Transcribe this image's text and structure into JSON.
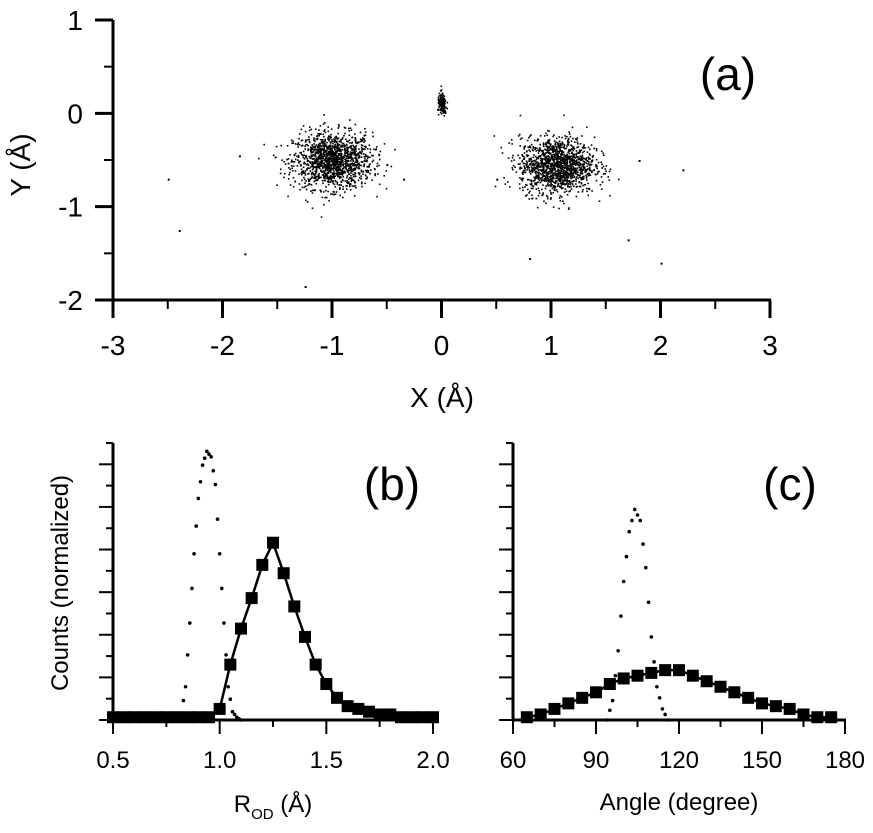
{
  "chart_data": [
    {
      "panel": "a",
      "type": "scatter",
      "panel_label": "(a)",
      "xlabel": "X (Å)",
      "ylabel": "Y (Å)",
      "xlim": [
        -3,
        3
      ],
      "ylim": [
        -2,
        1
      ],
      "xticks": [
        "-3",
        "-2",
        "-1",
        "0",
        "1",
        "2",
        "3"
      ],
      "yticks": [
        "1",
        "0",
        "-1",
        "-2"
      ],
      "clusters": [
        {
          "center": [
            -1.0,
            -0.5
          ],
          "spread": [
            0.18,
            0.15
          ],
          "points": 1400
        },
        {
          "center": [
            1.05,
            -0.55
          ],
          "spread": [
            0.17,
            0.15
          ],
          "points": 1400
        },
        {
          "center": [
            0.0,
            0.1
          ],
          "spread": [
            0.02,
            0.06
          ],
          "points": 140
        }
      ],
      "outliers": [
        [
          -2.5,
          -0.7
        ],
        [
          -2.4,
          -1.25
        ],
        [
          -1.8,
          -1.5
        ],
        [
          -1.85,
          -0.45
        ],
        [
          -0.35,
          -0.7
        ],
        [
          0.5,
          -0.7
        ],
        [
          2.2,
          -0.6
        ],
        [
          2.0,
          -1.6
        ],
        [
          1.8,
          -0.5
        ],
        [
          1.7,
          -1.35
        ],
        [
          0.8,
          -1.55
        ],
        [
          -1.25,
          -1.85
        ]
      ]
    },
    {
      "panel": "b",
      "type": "line",
      "panel_label": "(b)",
      "xlabel_main": "R",
      "xlabel_sub": "OD",
      "xlabel_unit": " (Å)",
      "ylabel": "Counts (normalized)",
      "xlim": [
        0.5,
        2.0
      ],
      "ylim": [
        0,
        1.0
      ],
      "xticks": [
        "0.5",
        "1.0",
        "1.5",
        "2.0"
      ],
      "series": [
        {
          "style": "squares-line",
          "x": [
            0.5,
            0.55,
            0.6,
            0.65,
            0.7,
            0.75,
            0.8,
            0.85,
            0.9,
            0.95,
            1.0,
            1.05,
            1.1,
            1.15,
            1.2,
            1.25,
            1.3,
            1.35,
            1.4,
            1.45,
            1.5,
            1.55,
            1.6,
            1.65,
            1.7,
            1.75,
            1.8,
            1.85,
            1.9,
            1.95,
            2.0
          ],
          "y": [
            0.01,
            0.01,
            0.01,
            0.01,
            0.01,
            0.01,
            0.01,
            0.01,
            0.01,
            0.01,
            0.04,
            0.2,
            0.33,
            0.44,
            0.56,
            0.64,
            0.53,
            0.41,
            0.3,
            0.2,
            0.13,
            0.08,
            0.05,
            0.04,
            0.03,
            0.02,
            0.02,
            0.01,
            0.01,
            0.01,
            0.01
          ]
        },
        {
          "style": "dotted",
          "x": [
            0.8,
            0.82,
            0.84,
            0.86,
            0.88,
            0.9,
            0.92,
            0.94,
            0.96,
            0.98,
            1.0,
            1.02,
            1.04,
            1.06,
            1.08,
            1.1
          ],
          "y": [
            0.0,
            0.02,
            0.12,
            0.35,
            0.6,
            0.8,
            0.92,
            0.97,
            0.95,
            0.85,
            0.6,
            0.35,
            0.12,
            0.03,
            0.01,
            0.0
          ]
        }
      ]
    },
    {
      "panel": "c",
      "type": "line",
      "panel_label": "(c)",
      "xlabel": "Angle (degree)",
      "xlim": [
        60,
        180
      ],
      "ylim": [
        0,
        1.0
      ],
      "xticks": [
        "60",
        "90",
        "120",
        "150",
        "180"
      ],
      "series": [
        {
          "style": "squares-line",
          "x": [
            65,
            70,
            75,
            80,
            85,
            90,
            95,
            100,
            105,
            110,
            115,
            120,
            125,
            130,
            135,
            140,
            145,
            150,
            155,
            160,
            165,
            170,
            175
          ],
          "y": [
            0.01,
            0.02,
            0.04,
            0.06,
            0.08,
            0.1,
            0.13,
            0.15,
            0.16,
            0.17,
            0.18,
            0.18,
            0.16,
            0.14,
            0.12,
            0.1,
            0.08,
            0.06,
            0.05,
            0.04,
            0.02,
            0.01,
            0.01
          ]
        },
        {
          "style": "dotted",
          "x": [
            94,
            96,
            98,
            100,
            102,
            104,
            106,
            108,
            110,
            112,
            114,
            116
          ],
          "y": [
            0.0,
            0.07,
            0.25,
            0.5,
            0.68,
            0.76,
            0.72,
            0.55,
            0.3,
            0.12,
            0.04,
            0.0
          ]
        }
      ]
    }
  ]
}
